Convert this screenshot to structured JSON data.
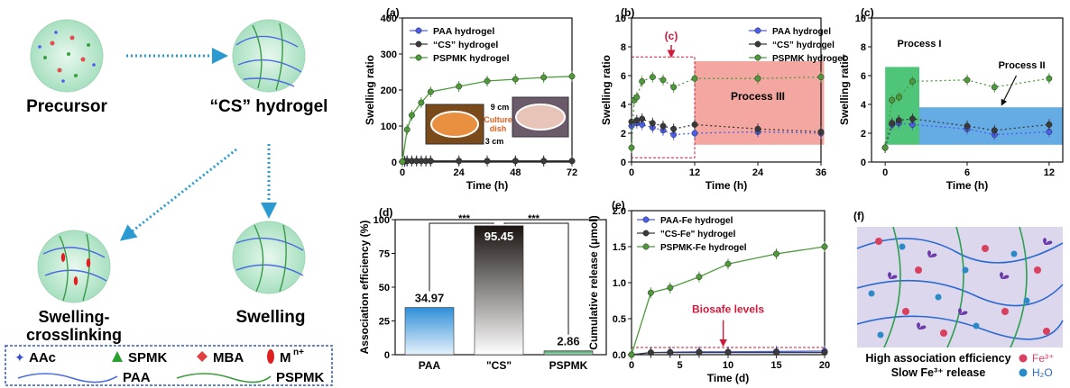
{
  "scheme": {
    "precursor": "Precursor",
    "cs_hydrogel": "“CS” hydrogel",
    "swelling_crosslinking_1": "Swelling-",
    "swelling_crosslinking_2": "crosslinking",
    "swelling": "Swelling",
    "legend": {
      "aac": "AAc",
      "spmk": "SPMK",
      "mba": "MBA",
      "mn": "M",
      "mn_sup": "n+",
      "paa": "PAA",
      "pspmk": "PSPMK"
    }
  },
  "colors": {
    "blue": "#4a5ef0",
    "dark": "#3a3a3a",
    "green": "#4e9a3a",
    "process3": "#f08a80",
    "process1": "#3cbf6a",
    "process2": "#4a9ee0"
  },
  "chart_data": [
    {
      "panel": "(a)",
      "type": "line",
      "xlabel": "Time (h)",
      "ylabel": "Swelling ratio",
      "xlim": [
        0,
        72
      ],
      "ylim": [
        0,
        400
      ],
      "xticks": [
        "0",
        "24",
        "48",
        "72"
      ],
      "yticks": [
        "0",
        "100",
        "200",
        "300",
        "400"
      ],
      "legend_position": "top-left",
      "series": [
        {
          "name": "PAA hydrogel",
          "x": [
            0,
            1,
            2,
            4,
            6,
            8,
            10,
            12,
            24,
            36,
            48,
            60,
            72
          ],
          "y": [
            1,
            2,
            3,
            3,
            3,
            3,
            3,
            3,
            3,
            3,
            3,
            3,
            3
          ]
        },
        {
          "name": "“CS” hydrogel",
          "x": [
            0,
            1,
            2,
            4,
            6,
            8,
            10,
            12,
            24,
            36,
            48,
            60,
            72
          ],
          "y": [
            1,
            2,
            3,
            3,
            3,
            3,
            3,
            3,
            3,
            3,
            3,
            3,
            3
          ]
        },
        {
          "name": "PSPMK hydrogel",
          "x": [
            0,
            2,
            4,
            8,
            12,
            24,
            36,
            48,
            60,
            72
          ],
          "y": [
            1,
            90,
            130,
            165,
            195,
            210,
            225,
            230,
            235,
            238
          ]
        }
      ],
      "annotations": {
        "dim1": "9 cm",
        "dim2": "3 cm",
        "culture1": "Culture",
        "culture2": "dish"
      }
    },
    {
      "panel": "(b)",
      "type": "line",
      "xlabel": "Time (h)",
      "ylabel": "Swelling ratio",
      "xlim": [
        0,
        36
      ],
      "ylim": [
        0,
        10
      ],
      "xticks": [
        "0",
        "12",
        "24",
        "36"
      ],
      "yticks": [
        "0",
        "2",
        "4",
        "6",
        "8",
        "10"
      ],
      "legend_position": "top-right",
      "series": [
        {
          "name": "PAA hydrogel",
          "x": [
            0,
            1,
            2,
            4,
            6,
            8,
            12,
            24,
            36
          ],
          "y": [
            2.5,
            2.7,
            2.6,
            2.4,
            2.2,
            1.9,
            2.0,
            2.1,
            2.0
          ]
        },
        {
          "name": "“CS” hydrogel",
          "x": [
            0,
            1,
            2,
            4,
            6,
            8,
            12,
            24,
            36
          ],
          "y": [
            2.8,
            2.9,
            3.0,
            2.7,
            2.5,
            2.3,
            2.6,
            2.3,
            2.1
          ]
        },
        {
          "name": "PSPMK hydrogel",
          "x": [
            0,
            0.5,
            1,
            2,
            4,
            6,
            8,
            12,
            24,
            36
          ],
          "y": [
            1.0,
            4.3,
            4.5,
            5.6,
            5.9,
            5.7,
            5.2,
            5.8,
            5.8,
            5.9
          ]
        }
      ],
      "annotations": {
        "zoom_label": "(c)",
        "process3": "Process III"
      }
    },
    {
      "panel": "(c)",
      "type": "line",
      "xlabel": "Time (h)",
      "ylabel": "Swelling ratio",
      "xlim": [
        -1,
        13
      ],
      "ylim": [
        0,
        10
      ],
      "xticks": [
        "0",
        "6",
        "12"
      ],
      "yticks": [
        "0",
        "2",
        "4",
        "6",
        "8",
        "10"
      ],
      "series": [
        {
          "name": "PAA hydrogel",
          "x": [
            0,
            0.5,
            1,
            2,
            6,
            8,
            12
          ],
          "y": [
            1.0,
            2.6,
            2.7,
            2.6,
            2.3,
            1.9,
            2.1
          ]
        },
        {
          "name": "“CS” hydrogel",
          "x": [
            0,
            0.5,
            1,
            2,
            6,
            8,
            12
          ],
          "y": [
            1.0,
            2.7,
            2.9,
            3.0,
            2.5,
            2.2,
            2.6
          ]
        },
        {
          "name": "PSPMK hydrogel",
          "x": [
            0,
            0.5,
            1,
            2,
            6,
            8,
            12
          ],
          "y": [
            1.0,
            4.3,
            4.5,
            5.6,
            5.7,
            5.2,
            5.8
          ]
        }
      ],
      "annotations": {
        "process1": "Process I",
        "process2": "Process II"
      }
    },
    {
      "panel": "(d)",
      "type": "bar",
      "ylabel": "Association efficiency (%)",
      "ylim": [
        0,
        100
      ],
      "yticks": [
        "0",
        "25",
        "50",
        "75",
        "100"
      ],
      "categories": [
        "PAA",
        "\"CS\"",
        "PSPMK"
      ],
      "values": [
        34.97,
        95.45,
        2.86
      ],
      "labels": [
        "34.97",
        "95.45",
        "2.86"
      ],
      "significance": [
        "***",
        "***"
      ]
    },
    {
      "panel": "(e)",
      "type": "line",
      "xlabel": "Time (d)",
      "ylabel": "Cumulative release (μmol)",
      "xlim": [
        0,
        20
      ],
      "ylim": [
        0,
        2.0
      ],
      "xticks": [
        "0",
        "5",
        "10",
        "15",
        "20"
      ],
      "yticks": [
        "0.0",
        "0.5",
        "1.0",
        "1.5",
        "2.0"
      ],
      "legend_position": "top-left",
      "series": [
        {
          "name": "PAA-Fe hydrogel",
          "x": [
            0,
            2,
            4,
            7,
            10,
            15,
            20
          ],
          "y": [
            0,
            0.03,
            0.035,
            0.04,
            0.04,
            0.045,
            0.05
          ]
        },
        {
          "name": "\"CS-Fe\" hydrogel",
          "x": [
            0,
            2,
            4,
            7,
            10,
            15,
            20
          ],
          "y": [
            0,
            0.03,
            0.03,
            0.03,
            0.03,
            0.03,
            0.03
          ]
        },
        {
          "name": "PSPMK-Fe hydrogel",
          "x": [
            0,
            2,
            4,
            7,
            10,
            15,
            20
          ],
          "y": [
            0,
            0.86,
            0.93,
            1.08,
            1.26,
            1.4,
            1.5
          ]
        }
      ],
      "annotations": {
        "biosafe": "Biosafe levels"
      }
    }
  ],
  "panel_f": {
    "label": "(f)",
    "caption1": "High association efficiency",
    "caption2": "Slow Fe³⁺ release",
    "legend_fe": "Fe³⁺",
    "legend_h2o": "H₂O"
  }
}
